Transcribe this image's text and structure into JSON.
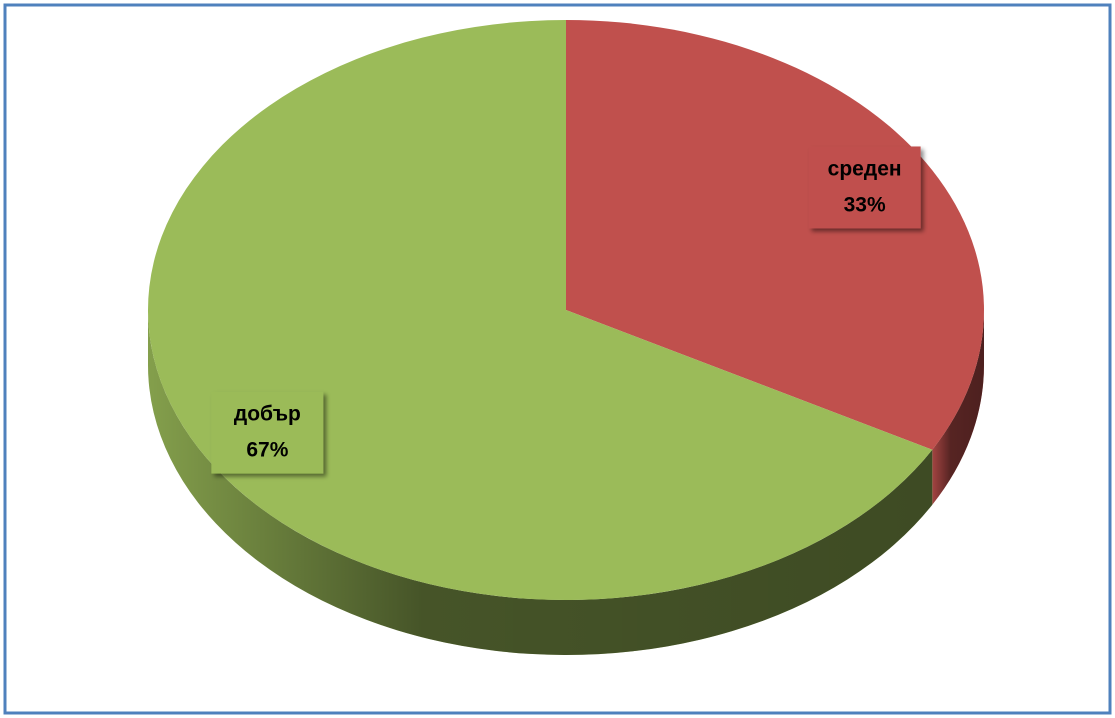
{
  "chart_data": {
    "type": "pie",
    "categories": [
      "среден",
      "добър"
    ],
    "values": [
      33,
      67
    ],
    "value_labels": [
      "33%",
      "67%"
    ],
    "colors": [
      "#c0504d",
      "#9bbb59"
    ]
  }
}
